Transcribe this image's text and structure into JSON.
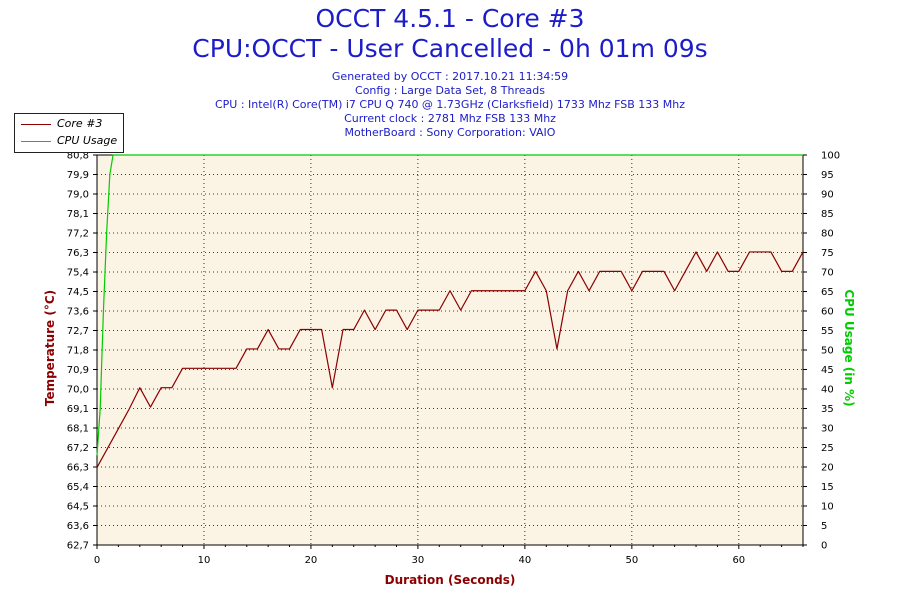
{
  "title": "OCCT 4.5.1 - Core #3",
  "subtitle": "CPU:OCCT - User Cancelled - 0h 01m 09s",
  "info_lines": [
    "Generated by OCCT : 2017.10.21 11:34:59",
    "Config : Large Data Set, 8 Threads",
    "CPU : Intel(R) Core(TM) i7 CPU Q 740 @ 1.73GHz (Clarksfield) 1733 Mhz FSB 133 Mhz",
    "Current clock : 2781 Mhz FSB 133 Mhz",
    "MotherBoard : Sony Corporation: VAIO"
  ],
  "legend": [
    {
      "label": "Core #3",
      "color": "#8b0000"
    },
    {
      "label": "CPU Usage",
      "color": "#00cc00"
    }
  ],
  "colors": {
    "temperature": "#8b0000",
    "cpu_usage": "#00cc00",
    "plot_background": "#fbf3e4",
    "title": "#1c1cc8",
    "y_right_label": "#00cc00",
    "y_left_label": "#8b0000"
  },
  "chart_data": {
    "type": "line",
    "xlabel": "Duration (Seconds)",
    "ylabel": "Temperature (°C)",
    "ylabel_right": "CPU Usage (in %)",
    "x_ticks": [
      0,
      10,
      20,
      30,
      40,
      50,
      60
    ],
    "xlim": [
      0,
      66
    ],
    "y_ticks": [
      "62,7",
      "63,6",
      "64,5",
      "65,4",
      "66,3",
      "67,2",
      "68,1",
      "69,1",
      "70,0",
      "70,9",
      "71,8",
      "72,7",
      "73,6",
      "74,5",
      "75,4",
      "76,3",
      "77,2",
      "78,1",
      "79,0",
      "79,9",
      "80,8"
    ],
    "ylim": [
      62.7,
      80.8
    ],
    "y_right_ticks": [
      0,
      5,
      10,
      15,
      20,
      25,
      30,
      35,
      40,
      45,
      50,
      55,
      60,
      65,
      70,
      75,
      80,
      85,
      90,
      95,
      100
    ],
    "ylim_right": [
      0,
      100
    ],
    "grid": true,
    "series": [
      {
        "name": "Core #3",
        "axis": "left",
        "x": [
          0,
          1,
          2,
          3,
          4,
          5,
          6,
          7,
          8,
          9,
          10,
          11,
          12,
          13,
          14,
          15,
          16,
          17,
          18,
          19,
          20,
          21,
          22,
          23,
          24,
          25,
          26,
          27,
          28,
          29,
          30,
          31,
          32,
          33,
          34,
          35,
          36,
          37,
          38,
          39,
          40,
          41,
          42,
          43,
          44,
          45,
          46,
          47,
          48,
          49,
          50,
          51,
          52,
          53,
          54,
          55,
          56,
          57,
          58,
          59,
          60,
          61,
          62,
          63,
          64,
          65,
          66
        ],
        "y": [
          66.3,
          67.2,
          68.1,
          69.0,
          70.0,
          69.1,
          70.0,
          70.0,
          70.9,
          70.9,
          70.9,
          70.9,
          70.9,
          70.9,
          71.8,
          71.8,
          72.7,
          71.8,
          71.8,
          72.7,
          72.7,
          72.7,
          70.0,
          72.7,
          72.7,
          73.6,
          72.7,
          73.6,
          73.6,
          72.7,
          73.6,
          73.6,
          73.6,
          74.5,
          73.6,
          74.5,
          74.5,
          74.5,
          74.5,
          74.5,
          74.5,
          75.4,
          74.5,
          71.8,
          74.5,
          75.4,
          74.5,
          75.4,
          75.4,
          75.4,
          74.5,
          75.4,
          75.4,
          75.4,
          74.5,
          75.4,
          76.3,
          75.4,
          76.3,
          75.4,
          75.4,
          76.3,
          76.3,
          76.3,
          75.4,
          75.4,
          76.3
        ]
      },
      {
        "name": "CPU Usage",
        "axis": "right",
        "x": [
          0,
          0.3,
          0.6,
          0.9,
          1.2,
          1.5,
          66
        ],
        "y": [
          23,
          35,
          60,
          80,
          95,
          100,
          100
        ]
      }
    ]
  }
}
